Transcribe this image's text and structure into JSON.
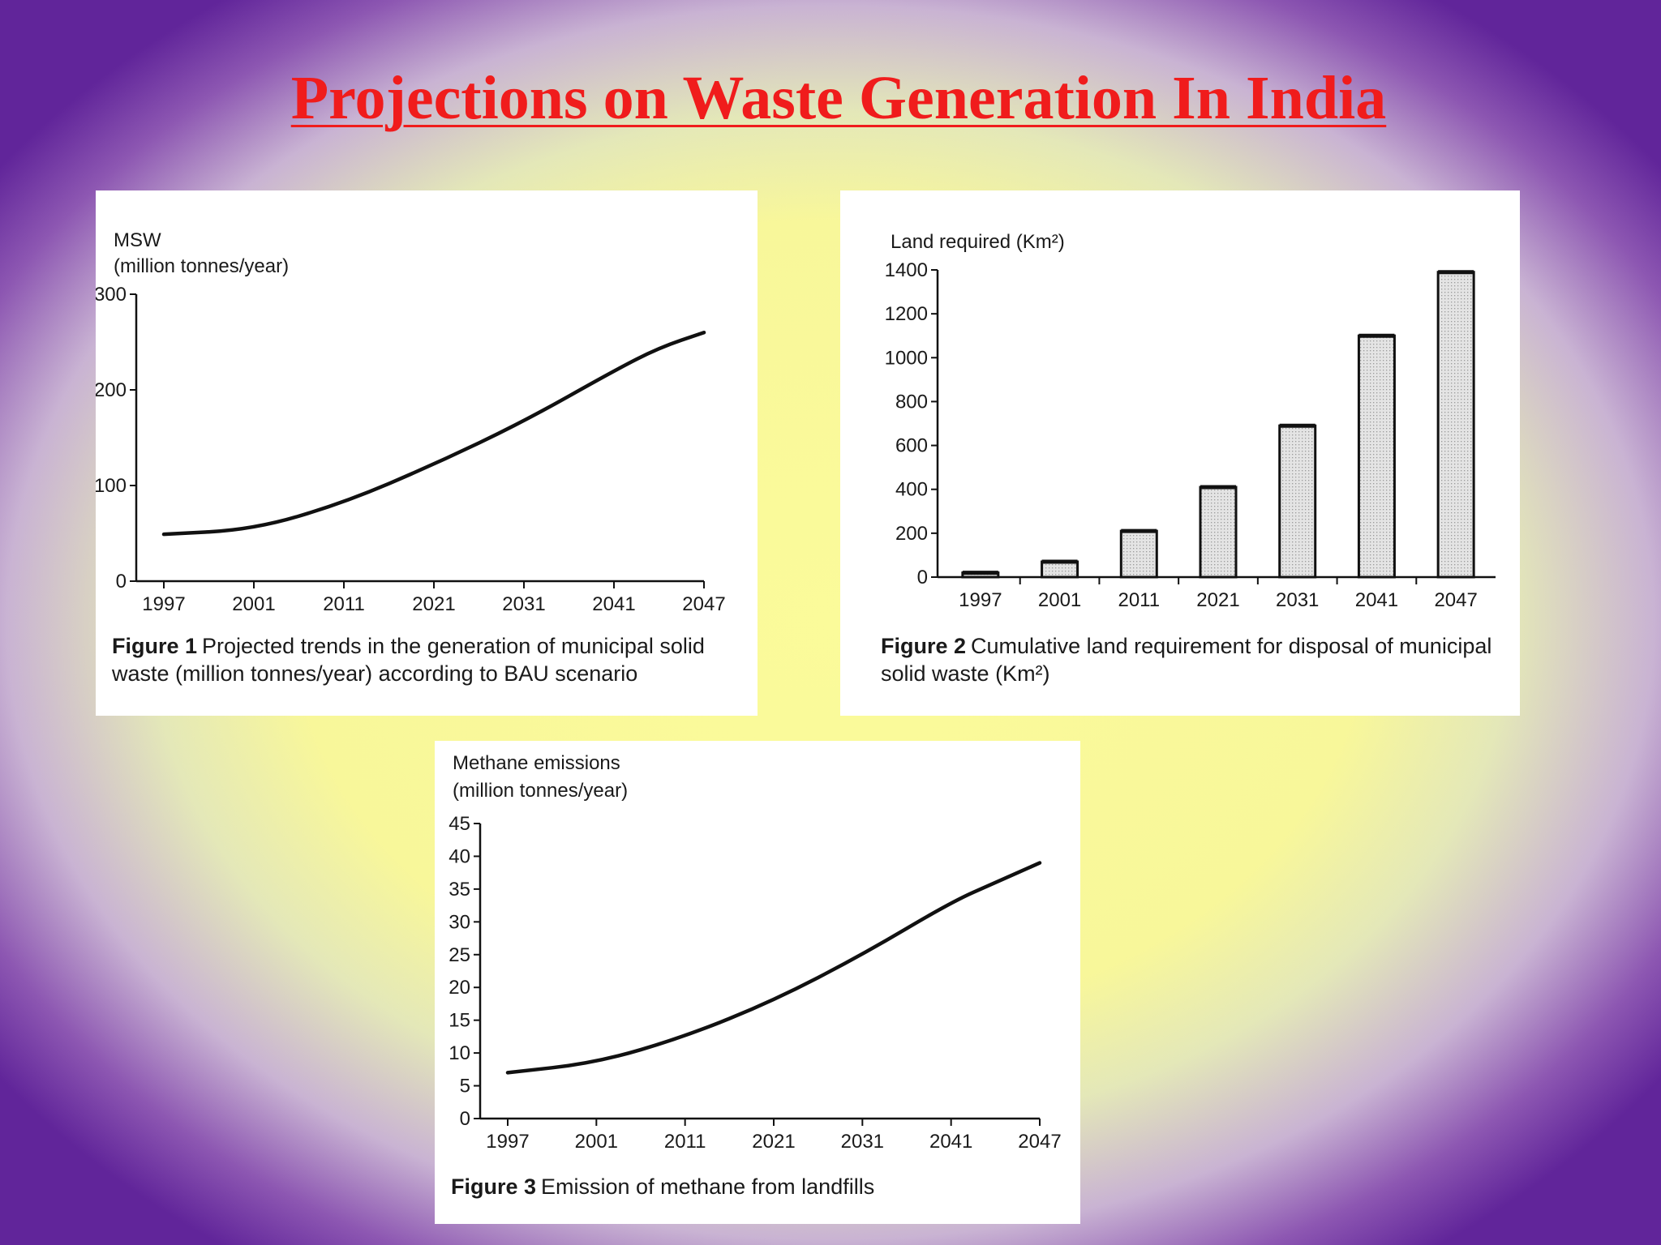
{
  "slide": {
    "title": "Projections on Waste Generation In India"
  },
  "chart_data": [
    {
      "id": "fig1",
      "type": "line",
      "ylabel_line1": "MSW",
      "ylabel_line2": "(million tonnes/year)",
      "caption_label": "Figure 1",
      "caption_text": "Projected trends in the generation of municipal solid waste (million tonnes/year) according to BAU scenario",
      "categories": [
        "1997",
        "2001",
        "2011",
        "2021",
        "2031",
        "2041",
        "2047"
      ],
      "yticks": [
        0,
        100,
        200,
        300
      ],
      "ylim": [
        0,
        300
      ],
      "series": [
        {
          "points": [
            [
              0,
              49
            ],
            [
              1,
              54
            ],
            [
              2,
              82
            ],
            [
              3,
              122
            ],
            [
              4,
              167
            ],
            [
              5,
              220
            ],
            [
              5.5,
              244
            ],
            [
              6,
              260
            ]
          ]
        }
      ]
    },
    {
      "id": "fig2",
      "type": "bar",
      "ylabel": "Land required (Km²)",
      "caption_label": "Figure 2",
      "caption_text": "Cumulative land requirement for disposal of municipal solid waste (Km²)",
      "categories": [
        "1997",
        "2001",
        "2011",
        "2021",
        "2031",
        "2041",
        "2047"
      ],
      "values": [
        20,
        70,
        210,
        410,
        690,
        1100,
        1390
      ],
      "yticks": [
        0,
        200,
        400,
        600,
        800,
        1000,
        1200,
        1400
      ],
      "ylim": [
        0,
        1400
      ]
    },
    {
      "id": "fig3",
      "type": "line",
      "ylabel_line1": "Methane emissions",
      "ylabel_line2": "(million tonnes/year)",
      "caption_label": "Figure 3",
      "caption_text": "Emission of methane from landfills",
      "categories": [
        "1997",
        "2001",
        "2011",
        "2021",
        "2031",
        "2041",
        "2047"
      ],
      "yticks": [
        0,
        5,
        10,
        15,
        20,
        25,
        30,
        35,
        40,
        45
      ],
      "ylim": [
        0,
        45
      ],
      "series": [
        {
          "points": [
            [
              0,
              7
            ],
            [
              1,
              8.5
            ],
            [
              2,
              12.5
            ],
            [
              3,
              18
            ],
            [
              4,
              25
            ],
            [
              5,
              33
            ],
            [
              5.5,
              36
            ],
            [
              6,
              39
            ]
          ]
        }
      ]
    }
  ]
}
